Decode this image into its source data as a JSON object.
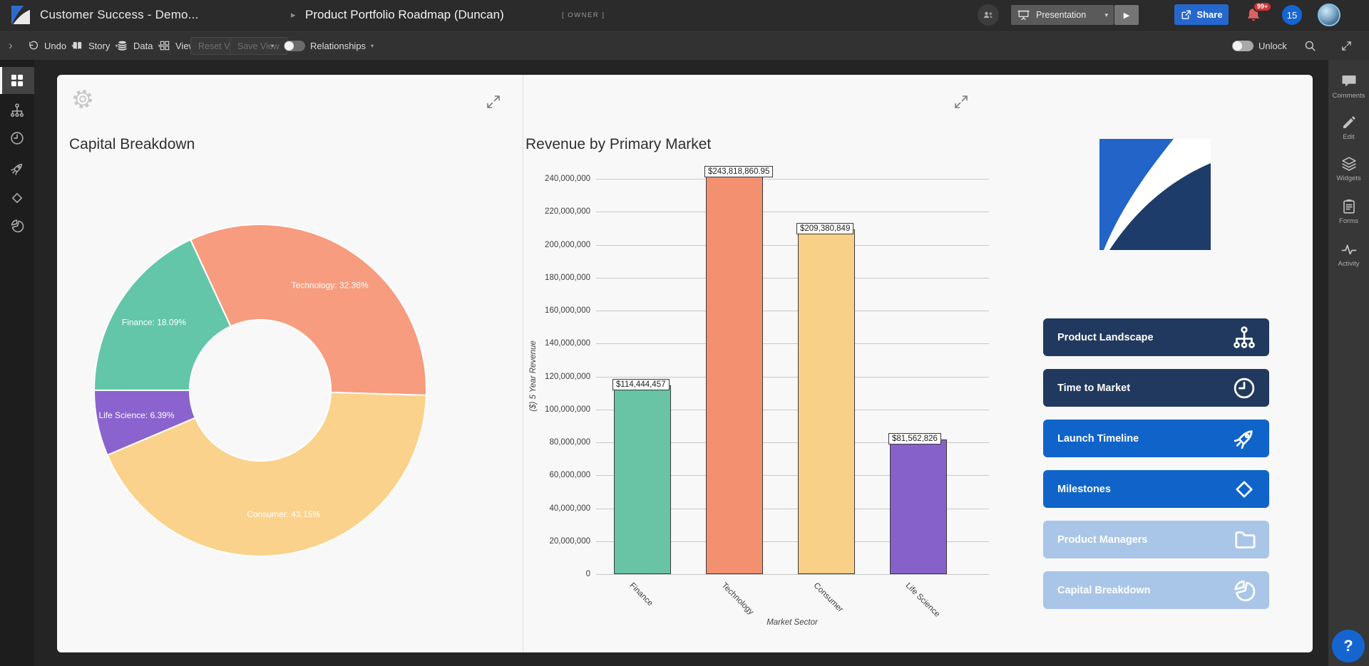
{
  "header": {
    "workspace": "Customer Success - Demo...",
    "separator": "▸",
    "title": "Product Portfolio Roadmap (Duncan)",
    "owner_badge": "[ OWNER ]",
    "mode_selector": {
      "value": "Presentation",
      "caret": "▾"
    },
    "play_label": "▶",
    "share_label": "Share",
    "notification_badge": "99+",
    "inbox_count": "15"
  },
  "toolbar": {
    "collapse_chevron": "›",
    "undo_label": "Undo",
    "story_label": "Story",
    "data_label": "Data",
    "view_label": "View",
    "reset_view_label": "Reset View",
    "save_view_label": "Save View",
    "relationships_label": "Relationships",
    "unlock_label": "Unlock",
    "caret": "▾"
  },
  "left_sidebar": {
    "items": [
      {
        "icon": "grid-icon",
        "selected": true
      },
      {
        "icon": "org-chart-icon",
        "selected": false
      },
      {
        "icon": "clock-icon",
        "selected": false
      },
      {
        "icon": "rocket-icon",
        "selected": false
      },
      {
        "icon": "diamond-icon",
        "selected": false
      },
      {
        "icon": "pie-icon",
        "selected": false
      }
    ]
  },
  "right_rail": {
    "items": [
      {
        "icon": "comment-icon",
        "label": "Comments"
      },
      {
        "icon": "pencil-icon",
        "label": "Edit"
      },
      {
        "icon": "layers-icon",
        "label": "Widgets"
      },
      {
        "icon": "clipboard-icon",
        "label": "Forms"
      },
      {
        "icon": "pulse-icon",
        "label": "Activity"
      }
    ]
  },
  "widgets": {
    "logo_icon": "company-swoosh-logo",
    "nav_buttons": [
      {
        "label": "Product Landscape",
        "icon": "org-chart-icon",
        "style": "navy"
      },
      {
        "label": "Time to Market",
        "icon": "clock-icon",
        "style": "navy"
      },
      {
        "label": "Launch Timeline",
        "icon": "rocket-icon",
        "style": "blue"
      },
      {
        "label": "Milestones",
        "icon": "diamond-icon",
        "style": "blue"
      },
      {
        "label": "Product Managers",
        "icon": "folder-icon",
        "style": "light"
      },
      {
        "label": "Capital Breakdown",
        "icon": "pie-icon",
        "style": "light"
      }
    ]
  },
  "chart_data": [
    {
      "type": "pie",
      "title": "Capital Breakdown",
      "donut": true,
      "start_angle": -24.8,
      "legend_position": "none",
      "slices": [
        {
          "name": "Technology",
          "value": 32.36,
          "label": "Technology: 32.36%",
          "color": "#F79C7E"
        },
        {
          "name": "Consumer",
          "value": 43.15,
          "label": "Consumer: 43.15%",
          "color": "#FBD28C"
        },
        {
          "name": "Life Science",
          "value": 6.39,
          "label": "Life Science: 6.39%",
          "color": "#8A63CE"
        },
        {
          "name": "Finance",
          "value": 18.09,
          "label": "Finance: 18.09%",
          "color": "#63C6A8"
        }
      ]
    },
    {
      "type": "bar",
      "title": "Revenue by Primary Market",
      "categories": [
        "Finance",
        "Technology",
        "Consumer",
        "Life Science"
      ],
      "values": [
        114444457,
        243818860.95,
        209380849,
        81562826
      ],
      "value_labels": [
        "$114,444,457",
        "$243,818,860.95",
        "$209,380,849",
        "$81,562,826"
      ],
      "colors": [
        "#69C3A5",
        "#F29070",
        "#F9D088",
        "#8661C9"
      ],
      "xlabel": "Market Sector",
      "ylabel": "($) 5 Year Revenue",
      "ylim": [
        0,
        240000000
      ],
      "ytick_step": 20000000,
      "grid": true
    }
  ],
  "help_label": "?"
}
